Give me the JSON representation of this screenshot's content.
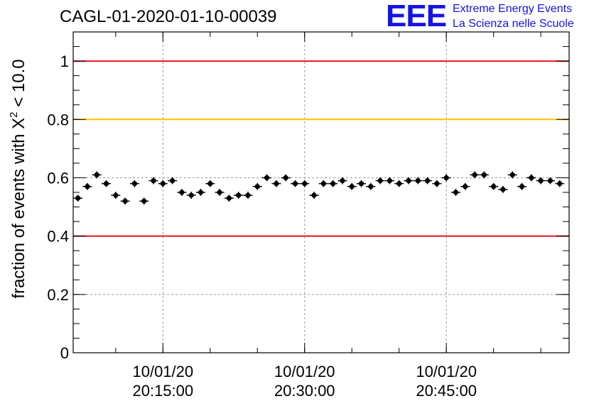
{
  "header": {
    "run_title": "CAGL-01-2020-01-10-00039",
    "logo_letters": "EEE",
    "logo_line1": "Extreme Energy Events",
    "logo_line2": "La Scienza nelle Scuole"
  },
  "colors": {
    "red_line": "#e8141e",
    "orange_line": "#ffc400",
    "logo_blue": "#1414e6",
    "marker": "#000000",
    "grid": "#9a9a9a"
  },
  "chart_data": {
    "type": "scatter",
    "title": "CAGL-01-2020-01-10-00039",
    "ylabel_main": "fraction of events with X",
    "ylabel_sup": "2",
    "ylabel_tail": " < 10.0",
    "xlabel": "",
    "ylim": [
      0,
      1.1
    ],
    "xlim": [
      "2020-01-10 20:05:30",
      "2020-01-10 20:58:00"
    ],
    "yticks": [
      "0",
      "0.2",
      "0.4",
      "0.6",
      "0.8",
      "1"
    ],
    "ytick_values": [
      0,
      0.2,
      0.4,
      0.6,
      0.8,
      1.0
    ],
    "xticks": [
      {
        "time": "2020-01-10 20:15:00",
        "date_label": "10/01/20",
        "time_label": "20:15:00"
      },
      {
        "time": "2020-01-10 20:30:00",
        "date_label": "10/01/20",
        "time_label": "20:30:00"
      },
      {
        "time": "2020-01-10 20:45:00",
        "date_label": "10/01/20",
        "time_label": "20:45:00"
      }
    ],
    "grid": true,
    "reference_lines": [
      {
        "y": 1.0,
        "color": "#e8141e"
      },
      {
        "y": 0.8,
        "color": "#ffc400"
      },
      {
        "y": 0.4,
        "color": "#e8141e"
      }
    ],
    "x": [
      "20:06:00",
      "20:07:00",
      "20:08:00",
      "20:09:00",
      "20:10:00",
      "20:11:00",
      "20:12:00",
      "20:13:00",
      "20:14:00",
      "20:15:00",
      "20:16:00",
      "20:17:00",
      "20:18:00",
      "20:19:00",
      "20:20:00",
      "20:21:00",
      "20:22:00",
      "20:23:00",
      "20:24:00",
      "20:25:00",
      "20:26:00",
      "20:27:00",
      "20:28:00",
      "20:29:00",
      "20:30:00",
      "20:31:00",
      "20:32:00",
      "20:33:00",
      "20:34:00",
      "20:35:00",
      "20:36:00",
      "20:37:00",
      "20:38:00",
      "20:39:00",
      "20:40:00",
      "20:41:00",
      "20:42:00",
      "20:43:00",
      "20:44:00",
      "20:45:00",
      "20:46:00",
      "20:47:00",
      "20:48:00",
      "20:49:00",
      "20:50:00",
      "20:51:00",
      "20:52:00",
      "20:53:00",
      "20:54:00",
      "20:55:00",
      "20:56:00",
      "20:57:00"
    ],
    "y": [
      0.53,
      0.57,
      0.61,
      0.58,
      0.54,
      0.52,
      0.58,
      0.52,
      0.59,
      0.58,
      0.59,
      0.55,
      0.54,
      0.55,
      0.58,
      0.55,
      0.53,
      0.54,
      0.54,
      0.57,
      0.6,
      0.58,
      0.6,
      0.58,
      0.58,
      0.54,
      0.58,
      0.58,
      0.59,
      0.57,
      0.58,
      0.57,
      0.59,
      0.59,
      0.58,
      0.59,
      0.59,
      0.59,
      0.58,
      0.6,
      0.55,
      0.57,
      0.61,
      0.61,
      0.57,
      0.56,
      0.61,
      0.57,
      0.6,
      0.59,
      0.59,
      0.58
    ],
    "y_error": 0.012
  }
}
